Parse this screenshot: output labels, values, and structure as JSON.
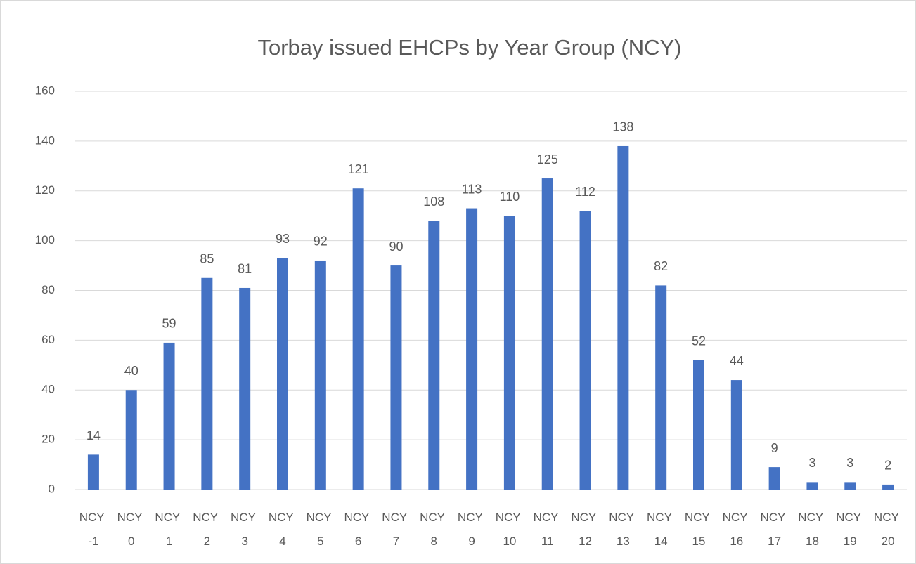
{
  "chart_data": {
    "type": "bar",
    "title": "Torbay issued EHCPs by Year Group (NCY)",
    "categories": [
      "NCY -1",
      "NCY 0",
      "NCY 1",
      "NCY 2",
      "NCY 3",
      "NCY 4",
      "NCY 5",
      "NCY 6",
      "NCY 7",
      "NCY 8",
      "NCY 9",
      "NCY 10",
      "NCY 11",
      "NCY 12",
      "NCY 13",
      "NCY 14",
      "NCY 15",
      "NCY 16",
      "NCY 17",
      "NCY 18",
      "NCY 19",
      "NCY 20"
    ],
    "values": [
      14,
      40,
      59,
      85,
      81,
      93,
      92,
      121,
      90,
      108,
      113,
      110,
      125,
      112,
      138,
      82,
      52,
      44,
      9,
      3,
      3,
      2
    ],
    "color": "#4472c4",
    "ylim": [
      0,
      160
    ],
    "yticks": [
      0,
      20,
      40,
      60,
      80,
      100,
      120,
      140,
      160
    ],
    "grid": true
  }
}
